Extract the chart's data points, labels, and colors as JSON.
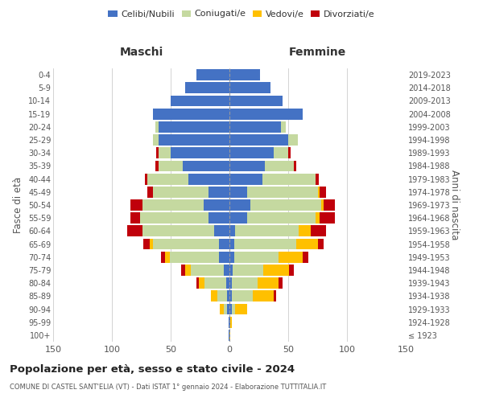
{
  "age_groups": [
    "100+",
    "95-99",
    "90-94",
    "85-89",
    "80-84",
    "75-79",
    "70-74",
    "65-69",
    "60-64",
    "55-59",
    "50-54",
    "45-49",
    "40-44",
    "35-39",
    "30-34",
    "25-29",
    "20-24",
    "15-19",
    "10-14",
    "5-9",
    "0-4"
  ],
  "birth_years": [
    "≤ 1923",
    "1924-1928",
    "1929-1933",
    "1934-1938",
    "1939-1943",
    "1944-1948",
    "1949-1953",
    "1954-1958",
    "1959-1963",
    "1964-1968",
    "1969-1973",
    "1974-1978",
    "1979-1983",
    "1984-1988",
    "1989-1993",
    "1994-1998",
    "1999-2003",
    "2004-2008",
    "2009-2013",
    "2014-2018",
    "2019-2023"
  ],
  "male_celibi": [
    1,
    1,
    2,
    2,
    3,
    5,
    9,
    9,
    13,
    18,
    22,
    18,
    35,
    40,
    50,
    60,
    60,
    65,
    50,
    38,
    28
  ],
  "male_coniugati": [
    0,
    0,
    3,
    8,
    18,
    28,
    42,
    56,
    61,
    58,
    52,
    47,
    35,
    20,
    10,
    5,
    3,
    0,
    0,
    0,
    0
  ],
  "male_vedovi": [
    0,
    0,
    3,
    6,
    5,
    5,
    4,
    3,
    0,
    0,
    0,
    0,
    0,
    0,
    0,
    0,
    0,
    0,
    0,
    0,
    0
  ],
  "male_divorziati": [
    0,
    0,
    0,
    0,
    2,
    3,
    3,
    5,
    13,
    8,
    10,
    5,
    2,
    3,
    2,
    0,
    0,
    0,
    0,
    0,
    0
  ],
  "female_celibi": [
    0,
    1,
    2,
    2,
    2,
    3,
    4,
    4,
    5,
    15,
    18,
    15,
    28,
    30,
    38,
    50,
    44,
    62,
    45,
    35,
    26
  ],
  "female_coniugati": [
    0,
    0,
    3,
    18,
    22,
    26,
    38,
    53,
    54,
    58,
    60,
    60,
    45,
    25,
    12,
    8,
    4,
    0,
    0,
    0,
    0
  ],
  "female_vedovi": [
    1,
    1,
    10,
    18,
    18,
    22,
    20,
    18,
    10,
    4,
    2,
    2,
    0,
    0,
    0,
    0,
    0,
    0,
    0,
    0,
    0
  ],
  "female_divorziati": [
    0,
    0,
    0,
    2,
    3,
    4,
    5,
    5,
    13,
    13,
    10,
    5,
    3,
    2,
    2,
    0,
    0,
    0,
    0,
    0,
    0
  ],
  "colors": {
    "celibi": "#4472c4",
    "coniugati": "#c5d9a0",
    "vedovi": "#ffc000",
    "divorziati": "#c0000b"
  },
  "legend_labels": [
    "Celibi/Nubili",
    "Coniugati/e",
    "Vedovi/e",
    "Divorziati/e"
  ],
  "xlabel_left": "Maschi",
  "xlabel_right": "Femmine",
  "ylabel_left": "Fasce di età",
  "ylabel_right": "Anni di nascita",
  "title": "Popolazione per età, sesso e stato civile - 2024",
  "subtitle": "COMUNE DI CASTEL SANT'ELIA (VT) - Dati ISTAT 1° gennaio 2024 - Elaborazione TUTTITALIA.IT",
  "xlim": 150,
  "background_color": "#ffffff",
  "grid_color": "#cccccc"
}
